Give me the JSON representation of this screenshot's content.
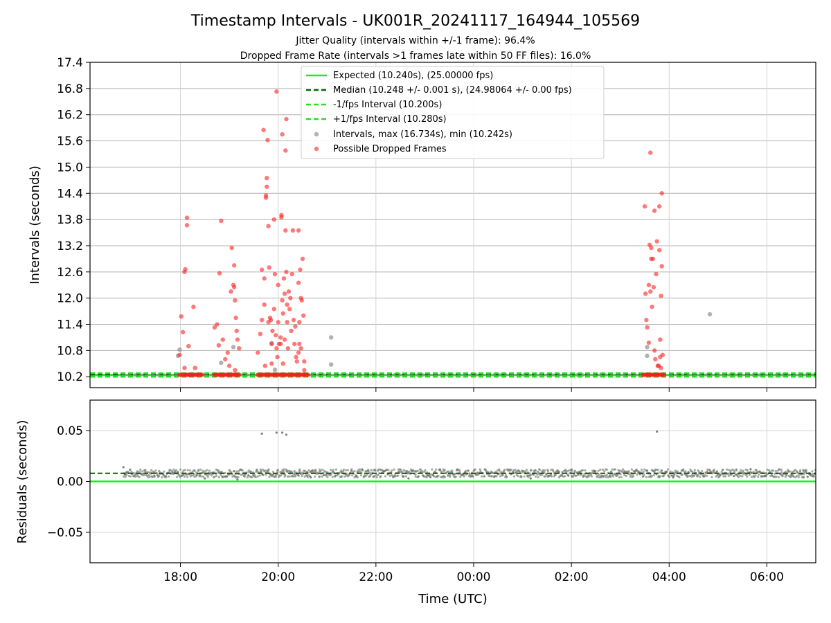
{
  "chart_data": [
    {
      "type": "scatter",
      "title": "Timestamp Intervals - UK001R_20241117_164944_105569",
      "subtitle_lines": [
        "Jitter Quality (intervals within +/-1 frame): 96.4%",
        "Dropped Frame Rate (intervals >1 frames late within 50 FF files): 16.0%"
      ],
      "xlabel": "",
      "ylabel": "Intervals (seconds)",
      "ylim": [
        9.95,
        17.4
      ],
      "xlim": [
        "2024-11-17T16:09",
        "2024-11-18T07:00"
      ],
      "yticks": [
        "10.2",
        "10.8",
        "11.4",
        "12.0",
        "12.6",
        "13.2",
        "13.8",
        "14.4",
        "15.0",
        "15.6",
        "16.2",
        "16.8",
        "17.4"
      ],
      "xticks": [
        "18:00",
        "20:00",
        "22:00",
        "00:00",
        "02:00",
        "04:00",
        "06:00"
      ],
      "grid": true,
      "legend_position": "top-center",
      "legend": [
        "Expected (10.240s), (25.00000 fps)",
        "Median (10.248 +/- 0.001 s), (24.98064 +/- 0.00 fps)",
        "-1/fps Interval (10.200s)",
        "+1/fps Interval (10.280s)",
        "Intervals, max (16.734s), min (10.242s)",
        "Possible Dropped Frames"
      ],
      "colors": {
        "expected": "#1aee1a",
        "median": "#006400",
        "interval_band": "#22e022",
        "intervals": "#909090",
        "dropped": "#ff2020"
      },
      "reference_lines": {
        "expected": 10.24,
        "median": 10.248,
        "minus_1_fps": 10.2,
        "plus_1_fps": 10.28
      },
      "series": [
        {
          "name": "Intervals, max (16.734s), min (10.242s)",
          "points": [
            [
              "17:59",
              10.82
            ],
            [
              "17:57",
              10.68
            ],
            [
              "18:50",
              10.52
            ],
            [
              "19:05",
              10.88
            ],
            [
              "19:52",
              10.97
            ],
            [
              "19:56",
              10.36
            ],
            [
              "21:05",
              11.1
            ],
            [
              "21:05",
              10.48
            ],
            [
              "03:33",
              10.88
            ],
            [
              "03:33",
              10.68
            ],
            [
              "04:50",
              11.63
            ]
          ]
        },
        {
          "name": "Possible Dropped Frames",
          "points": [
            [
              "17:59",
              10.7
            ],
            [
              "18:01",
              11.58
            ],
            [
              "18:03",
              11.22
            ],
            [
              "18:05",
              12.6
            ],
            [
              "18:06",
              12.66
            ],
            [
              "18:08",
              13.84
            ],
            [
              "18:08",
              13.67
            ],
            [
              "18:10",
              10.9
            ],
            [
              "18:16",
              11.8
            ],
            [
              "18:05",
              10.4
            ],
            [
              "18:18",
              10.4
            ],
            [
              "18:42",
              11.33
            ],
            [
              "18:45",
              11.4
            ],
            [
              "18:47",
              10.92
            ],
            [
              "18:48",
              12.57
            ],
            [
              "18:50",
              13.77
            ],
            [
              "18:52",
              11.05
            ],
            [
              "18:55",
              10.6
            ],
            [
              "18:58",
              10.75
            ],
            [
              "19:00",
              10.45
            ],
            [
              "19:02",
              12.15
            ],
            [
              "19:03",
              13.15
            ],
            [
              "19:05",
              12.3
            ],
            [
              "19:06",
              12.75
            ],
            [
              "19:06",
              12.25
            ],
            [
              "19:07",
              11.95
            ],
            [
              "19:08",
              11.55
            ],
            [
              "19:09",
              11.25
            ],
            [
              "19:10",
              11.05
            ],
            [
              "19:07",
              10.35
            ],
            [
              "19:12",
              10.85
            ],
            [
              "19:35",
              10.75
            ],
            [
              "19:38",
              11.18
            ],
            [
              "19:40",
              11.5
            ],
            [
              "19:40",
              12.65
            ],
            [
              "19:42",
              15.85
            ],
            [
              "19:43",
              12.45
            ],
            [
              "19:43",
              11.85
            ],
            [
              "19:44",
              10.45
            ],
            [
              "19:45",
              14.35
            ],
            [
              "19:45",
              14.3
            ],
            [
              "19:46",
              14.55
            ],
            [
              "19:46",
              14.75
            ],
            [
              "19:47",
              15.62
            ],
            [
              "19:48",
              13.65
            ],
            [
              "19:48",
              11.45
            ],
            [
              "19:49",
              12.7
            ],
            [
              "19:50",
              11.55
            ],
            [
              "19:51",
              11.5
            ],
            [
              "19:52",
              10.95
            ],
            [
              "19:52",
              10.5
            ],
            [
              "19:53",
              11.25
            ],
            [
              "19:55",
              11.75
            ],
            [
              "19:55",
              13.8
            ],
            [
              "19:56",
              12.55
            ],
            [
              "19:57",
              11.15
            ],
            [
              "19:58",
              16.73
            ],
            [
              "19:58",
              10.85
            ],
            [
              "19:59",
              10.65
            ],
            [
              "20:00",
              12.3
            ],
            [
              "20:00",
              11.45
            ],
            [
              "20:01",
              10.95
            ],
            [
              "20:03",
              10.95
            ],
            [
              "20:03",
              11.1
            ],
            [
              "20:04",
              13.85
            ],
            [
              "20:04",
              13.9
            ],
            [
              "20:05",
              15.75
            ],
            [
              "20:05",
              11.95
            ],
            [
              "20:06",
              11.65
            ],
            [
              "20:06",
              10.5
            ],
            [
              "20:07",
              12.45
            ],
            [
              "20:08",
              12.1
            ],
            [
              "20:08",
              11.05
            ],
            [
              "20:09",
              13.55
            ],
            [
              "20:09",
              15.38
            ],
            [
              "20:10",
              16.1
            ],
            [
              "20:10",
              12.6
            ],
            [
              "20:11",
              11.85
            ],
            [
              "20:11",
              11.45
            ],
            [
              "20:12",
              10.85
            ],
            [
              "20:13",
              12.15
            ],
            [
              "20:14",
              11.75
            ],
            [
              "20:15",
              12.0
            ],
            [
              "20:16",
              11.25
            ],
            [
              "20:17",
              12.55
            ],
            [
              "20:18",
              13.55
            ],
            [
              "20:19",
              11.5
            ],
            [
              "20:20",
              10.95
            ],
            [
              "20:21",
              11.35
            ],
            [
              "20:22",
              10.65
            ],
            [
              "20:23",
              10.55
            ],
            [
              "20:25",
              10.75
            ],
            [
              "20:25",
              12.35
            ],
            [
              "20:25",
              13.55
            ],
            [
              "20:26",
              11.45
            ],
            [
              "20:26",
              10.95
            ],
            [
              "20:27",
              12.65
            ],
            [
              "20:28",
              12.0
            ],
            [
              "20:28",
              10.85
            ],
            [
              "20:29",
              11.95
            ],
            [
              "20:30",
              12.9
            ],
            [
              "20:31",
              11.6
            ],
            [
              "20:32",
              10.55
            ],
            [
              "20:32",
              10.35
            ],
            [
              "03:30",
              14.1
            ],
            [
              "03:31",
              12.1
            ],
            [
              "03:32",
              11.5
            ],
            [
              "03:33",
              11.33
            ],
            [
              "03:35",
              10.98
            ],
            [
              "03:35",
              12.3
            ],
            [
              "03:36",
              13.22
            ],
            [
              "03:37",
              12.15
            ],
            [
              "03:37",
              15.33
            ],
            [
              "03:38",
              12.9
            ],
            [
              "03:38",
              13.15
            ],
            [
              "03:39",
              11.8
            ],
            [
              "03:40",
              12.9
            ],
            [
              "03:41",
              12.25
            ],
            [
              "03:42",
              14.0
            ],
            [
              "03:42",
              10.8
            ],
            [
              "03:43",
              10.6
            ],
            [
              "03:44",
              12.55
            ],
            [
              "03:45",
              13.3
            ],
            [
              "03:46",
              10.45
            ],
            [
              "03:47",
              10.45
            ],
            [
              "03:48",
              14.1
            ],
            [
              "03:48",
              13.1
            ],
            [
              "03:49",
              11.05
            ],
            [
              "03:49",
              10.65
            ],
            [
              "03:50",
              12.05
            ],
            [
              "03:50",
              10.4
            ],
            [
              "03:51",
              12.73
            ],
            [
              "03:51",
              14.4
            ],
            [
              "03:52",
              10.7
            ]
          ]
        }
      ]
    },
    {
      "type": "scatter",
      "title": "",
      "xlabel": "Time (UTC)",
      "ylabel": "Residuals (seconds)",
      "ylim": [
        -0.08,
        0.08
      ],
      "xlim": [
        "2024-11-17T16:09",
        "2024-11-18T07:00"
      ],
      "yticks": [
        "0.05",
        "0.00",
        "−0.05"
      ],
      "xticks": [
        "18:00",
        "20:00",
        "22:00",
        "00:00",
        "02:00",
        "04:00",
        "06:00"
      ],
      "grid": true,
      "reference_lines": {
        "zero": 0.0,
        "median_offset": 0.008
      },
      "series": [
        {
          "name": "",
          "points": [
            [
              "16:50",
              0.014
            ],
            [
              "16:52",
              0.007
            ],
            [
              "19:40",
              0.047
            ],
            [
              "19:58",
              0.048
            ],
            [
              "20:05",
              0.048
            ],
            [
              "20:10",
              0.046
            ],
            [
              "03:45",
              0.049
            ],
            [
              "18:30",
              0.003
            ],
            [
              "19:10",
              0.002
            ],
            [
              "20:40",
              0.004
            ],
            [
              "22:40",
              0.003
            ],
            [
              "01:10",
              0.003
            ],
            [
              "04:05",
              0.004
            ],
            [
              "05:40",
              0.012
            ],
            [
              "06:45",
              0.004
            ]
          ],
          "band": {
            "from": "16:50",
            "to": "07:00",
            "center": 0.008,
            "spread": 0.004
          }
        }
      ]
    }
  ]
}
